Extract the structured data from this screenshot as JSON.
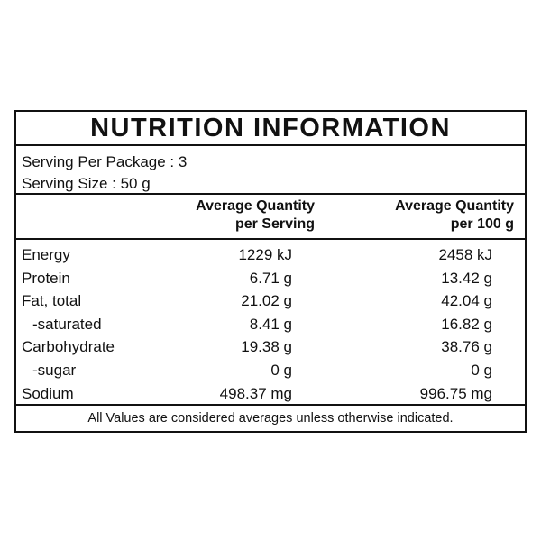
{
  "title": "NUTRITION INFORMATION",
  "serving": {
    "per_package": "Serving Per Package : 3",
    "size": "Serving Size : 50 g"
  },
  "columns": {
    "per_serving_line1": "Average Quantity",
    "per_serving_line2": "per Serving",
    "per_100g_line1": "Average Quantity",
    "per_100g_line2": "per 100 g"
  },
  "rows": [
    {
      "label": "Energy",
      "per_serving": "1229 kJ",
      "per_100g": "2458 kJ"
    },
    {
      "label": "Protein",
      "per_serving": "6.71 g",
      "per_100g": "13.42 g"
    },
    {
      "label": "Fat, total",
      "per_serving": "21.02 g",
      "per_100g": "42.04 g"
    },
    {
      "label": "-saturated",
      "per_serving": "8.41 g",
      "per_100g": "16.82 g"
    },
    {
      "label": "Carbohydrate",
      "per_serving": "19.38 g",
      "per_100g": "38.76 g"
    },
    {
      "label": "-sugar",
      "per_serving": "0 g",
      "per_100g": "0 g"
    },
    {
      "label": "Sodium",
      "per_serving": "498.37 mg",
      "per_100g": "996.75 mg"
    }
  ],
  "footer": "All Values are considered averages unless otherwise indicated."
}
